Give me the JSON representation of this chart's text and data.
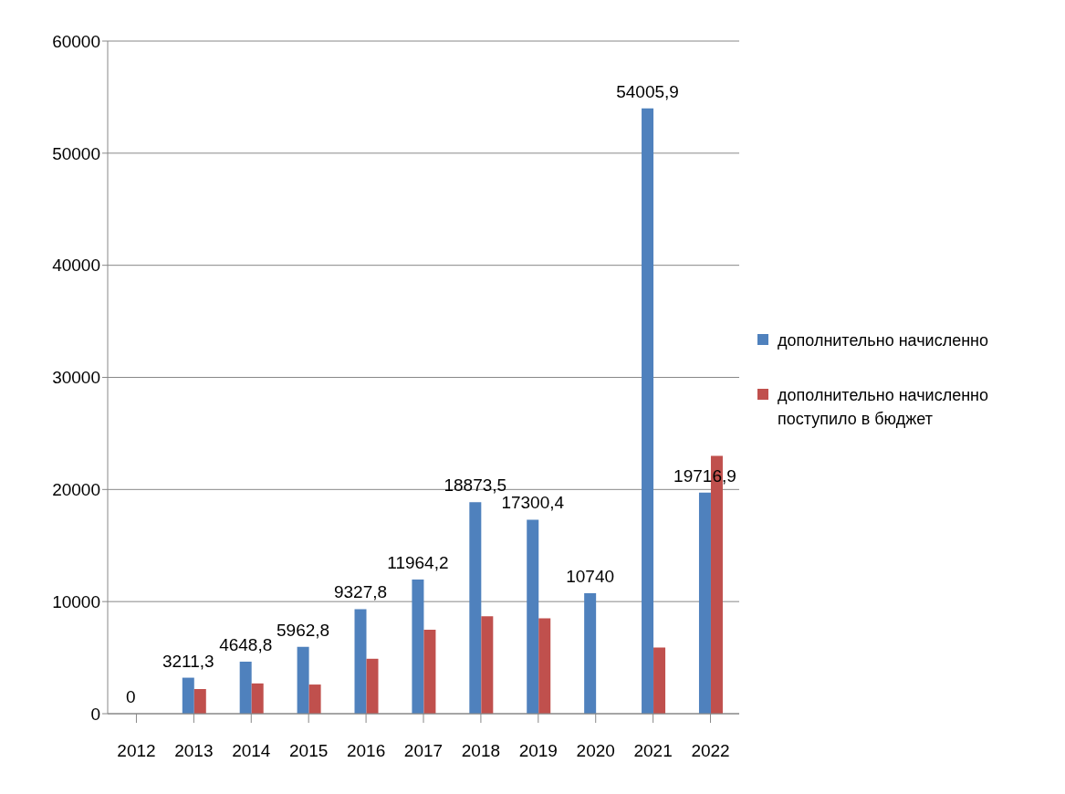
{
  "chart_data": {
    "type": "bar",
    "categories": [
      "2012",
      "2013",
      "2014",
      "2015",
      "2016",
      "2017",
      "2018",
      "2019",
      "2020",
      "2021",
      "2022"
    ],
    "series": [
      {
        "name": "дополнительно начисленно",
        "color": "#4f81bd",
        "values": [
          0,
          3211.3,
          4648.8,
          5962.8,
          9327.8,
          11964.2,
          18873.5,
          17300.4,
          10740,
          54005.9,
          19716.9
        ],
        "value_labels": [
          "0",
          "3211,3",
          "4648,8",
          "5962,8",
          "9327,8",
          "11964,2",
          "18873,5",
          "17300,4",
          "10740",
          "54005,9",
          "19716,9"
        ]
      },
      {
        "name": "дополнительно начисленно поступило в бюджет",
        "color": "#c0504d",
        "values": [
          null,
          2200,
          2700,
          2600,
          4900,
          7500,
          8700,
          8500,
          null,
          5900,
          23000
        ]
      }
    ],
    "ylim": [
      0,
      60000
    ],
    "yticks": [
      0,
      10000,
      20000,
      30000,
      40000,
      50000,
      60000
    ],
    "grid": "y",
    "legend": "right"
  }
}
